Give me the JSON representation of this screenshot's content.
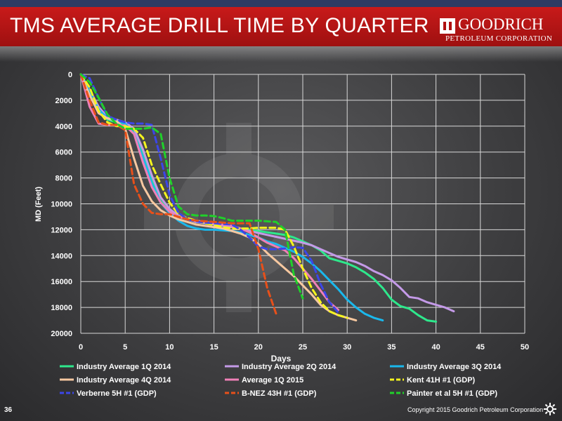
{
  "slide": {
    "title": "TMS AVERAGE DRILL TIME BY QUARTER",
    "logo_name": "GOODRICH",
    "logo_sub": "PETROLEUM CORPORATION",
    "page_number": "36",
    "copyright": "Copyright 2015 Goodrich Petroleum Corporation"
  },
  "colors": {
    "title_bar": "#b81414",
    "top_strip": "#2d3b63"
  },
  "chart_data": {
    "type": "line",
    "title": "",
    "xlabel": "Days",
    "ylabel": "MD (Feet)",
    "xlim": [
      0,
      50
    ],
    "ylim": [
      0,
      20000
    ],
    "y_inverted": true,
    "grid": true,
    "legend_position": "bottom",
    "x_ticks": [
      "0",
      "5",
      "10",
      "15",
      "20",
      "25",
      "30",
      "35",
      "40",
      "45",
      "50"
    ],
    "y_ticks": [
      "0",
      "2000",
      "4000",
      "6000",
      "8000",
      "10000",
      "12000",
      "14000",
      "16000",
      "18000",
      "20000"
    ],
    "series": [
      {
        "name": "Industry Average 1Q 2014",
        "color": "#2ee88c",
        "dash": "solid",
        "x": [
          0,
          1,
          2,
          3,
          4,
          5,
          6,
          7,
          8,
          9,
          10,
          11,
          12,
          13,
          14,
          15,
          16,
          17,
          18,
          19,
          20,
          21,
          22,
          23,
          24,
          25,
          26,
          27,
          28,
          29,
          30,
          31,
          32,
          33,
          34,
          35,
          36,
          37,
          38,
          39,
          40
        ],
        "y": [
          0,
          1400,
          2800,
          3500,
          3700,
          3800,
          4500,
          6200,
          8200,
          9800,
          10500,
          10900,
          11200,
          11400,
          11500,
          11600,
          11700,
          11800,
          11900,
          12000,
          12100,
          12200,
          12300,
          12400,
          12600,
          12900,
          13200,
          13600,
          14200,
          14400,
          14600,
          14900,
          15300,
          15800,
          16500,
          17400,
          17900,
          18100,
          18600,
          19000,
          19100
        ]
      },
      {
        "name": "Industry Average 2Q 2014",
        "color": "#c49ae8",
        "dash": "solid",
        "x": [
          0,
          1,
          2,
          3,
          4,
          5,
          6,
          7,
          8,
          9,
          10,
          11,
          12,
          13,
          14,
          15,
          16,
          17,
          18,
          19,
          20,
          21,
          22,
          23,
          24,
          25,
          26,
          27,
          28,
          29,
          30,
          31,
          32,
          33,
          34,
          35,
          36,
          37,
          38,
          39,
          40,
          41,
          42
        ],
        "y": [
          0,
          1200,
          2500,
          3300,
          3500,
          3700,
          4200,
          5800,
          7800,
          9500,
          10400,
          10900,
          11200,
          11400,
          11500,
          11600,
          11700,
          11800,
          11950,
          12100,
          12250,
          12400,
          12550,
          12700,
          12850,
          13000,
          13200,
          13500,
          13800,
          14100,
          14300,
          14500,
          14800,
          15200,
          15500,
          15900,
          16500,
          17200,
          17300,
          17600,
          17800,
          18000,
          18300
        ]
      },
      {
        "name": "Industry Average 3Q 2014",
        "color": "#1ab8ec",
        "dash": "solid",
        "x": [
          0,
          1,
          2,
          3,
          4,
          5,
          6,
          7,
          8,
          9,
          10,
          11,
          12,
          13,
          14,
          15,
          16,
          17,
          18,
          19,
          20,
          21,
          22,
          23,
          24,
          25,
          26,
          27,
          28,
          29,
          30,
          31,
          32,
          33,
          34
        ],
        "y": [
          0,
          1300,
          2700,
          3400,
          3600,
          3800,
          4600,
          6400,
          8400,
          9900,
          10700,
          11300,
          11700,
          11900,
          12000,
          12000,
          12050,
          12100,
          12200,
          12400,
          12600,
          12900,
          13100,
          13400,
          13700,
          14100,
          14600,
          15200,
          15900,
          16600,
          17400,
          18000,
          18500,
          18800,
          19000
        ]
      },
      {
        "name": "Industry Average 4Q 2014",
        "color": "#f7c8a0",
        "dash": "solid",
        "x": [
          0,
          1,
          2,
          3,
          4,
          5,
          6,
          7,
          8,
          9,
          10,
          11,
          12,
          13,
          14,
          15,
          16,
          17,
          18,
          19,
          20,
          21,
          22,
          23,
          24,
          25,
          26,
          27,
          28,
          29,
          30,
          31
        ],
        "y": [
          0,
          1600,
          3000,
          3400,
          3600,
          4200,
          6500,
          8600,
          9800,
          10500,
          10900,
          11200,
          11400,
          11600,
          11700,
          11800,
          11900,
          12100,
          12300,
          12600,
          13100,
          13800,
          14400,
          15000,
          15600,
          16300,
          17000,
          17800,
          18300,
          18600,
          18800,
          19000
        ]
      },
      {
        "name": "Average 1Q 2015",
        "color": "#f080b8",
        "dash": "solid",
        "x": [
          0,
          1,
          2,
          3,
          4,
          5,
          6,
          7,
          8,
          9,
          10,
          11,
          12,
          13,
          14,
          15,
          16,
          17,
          18,
          19,
          20,
          21,
          22,
          23,
          24,
          25,
          26,
          27,
          28,
          29
        ],
        "y": [
          0,
          2500,
          3800,
          3900,
          3900,
          3950,
          4600,
          6800,
          8700,
          9900,
          10600,
          11000,
          11200,
          11300,
          11400,
          11500,
          11600,
          11700,
          11900,
          12200,
          12600,
          13000,
          13300,
          13600,
          14200,
          15000,
          15800,
          16700,
          17600,
          18200
        ]
      },
      {
        "name": "Kent 41H #1 (GDP)",
        "color": "#f5f51e",
        "dash": "dashed",
        "x": [
          0,
          1,
          2,
          3,
          4,
          5,
          6,
          7,
          8,
          9,
          10,
          11,
          12,
          13,
          14,
          15,
          16,
          17,
          18,
          19,
          20,
          21,
          22,
          23,
          24,
          25,
          26,
          27,
          28,
          29,
          30
        ],
        "y": [
          0,
          1000,
          2800,
          3700,
          4000,
          4000,
          4200,
          4900,
          7000,
          8500,
          9900,
          10800,
          11100,
          11300,
          11500,
          11650,
          11800,
          11900,
          11900,
          11900,
          11850,
          11850,
          11850,
          12000,
          13300,
          15000,
          16500,
          17600,
          18300,
          18600,
          18800
        ]
      },
      {
        "name": "Verberne 5H #1 (GDP)",
        "color": "#3c46e8",
        "dash": "dashed",
        "x": [
          0,
          1,
          2,
          3,
          4,
          5,
          6,
          7,
          8,
          9,
          10,
          11,
          12,
          13,
          14,
          15,
          16,
          17,
          18,
          19,
          20,
          21,
          22,
          23,
          24,
          25,
          26,
          27,
          28,
          29
        ],
        "y": [
          0,
          300,
          1800,
          3200,
          3500,
          3700,
          3800,
          3800,
          3900,
          6500,
          9300,
          10700,
          11200,
          11350,
          11450,
          11500,
          11550,
          11600,
          12000,
          12600,
          13300,
          13500,
          13500,
          13450,
          13350,
          13400,
          14400,
          16200,
          17600,
          18400
        ]
      },
      {
        "name": "B-NEZ 43H #1 (GDP)",
        "color": "#e8501a",
        "dash": "dashed",
        "x": [
          0,
          1,
          2,
          3,
          4,
          5,
          6,
          7,
          8,
          9,
          10,
          11,
          12,
          13,
          14,
          15,
          16,
          17,
          18,
          19,
          20,
          21,
          22
        ],
        "y": [
          0,
          2000,
          3700,
          3900,
          3900,
          4300,
          8500,
          10000,
          10700,
          10800,
          10800,
          11000,
          11200,
          11300,
          11350,
          11400,
          11450,
          11500,
          11500,
          11500,
          13500,
          16500,
          18500
        ]
      },
      {
        "name": "Painter et al 5H #1 (GDP)",
        "color": "#20d02a",
        "dash": "dashed",
        "x": [
          0,
          1,
          2,
          3,
          4,
          5,
          6,
          7,
          8,
          9,
          10,
          11,
          12,
          13,
          14,
          15,
          16,
          17,
          18,
          19,
          20,
          21,
          22,
          23,
          24,
          25
        ],
        "y": [
          0,
          600,
          1800,
          3100,
          3800,
          4200,
          4200,
          4200,
          4100,
          4600,
          8000,
          10200,
          10800,
          10900,
          10900,
          10950,
          11100,
          11300,
          11300,
          11300,
          11300,
          11350,
          11400,
          12000,
          15500,
          17300
        ]
      }
    ]
  }
}
